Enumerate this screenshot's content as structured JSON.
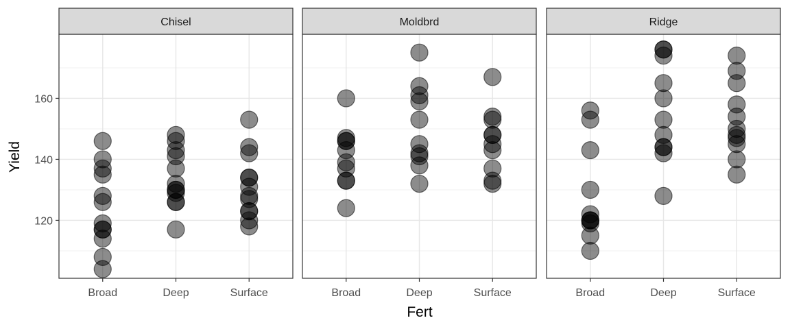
{
  "chart_data": {
    "type": "scatter",
    "xlabel": "Fert",
    "ylabel": "Yield",
    "categories": [
      "Broad",
      "Deep",
      "Surface"
    ],
    "ylim": [
      101,
      181
    ],
    "yticks": [
      120,
      140,
      160
    ],
    "grid": true,
    "point_color": "#000000",
    "point_alpha": 0.45,
    "strip_fill": "#d9d9d9",
    "panels": [
      {
        "title": "Chisel",
        "points": {
          "Broad": [
            146,
            140,
            137,
            135,
            128,
            126,
            119,
            117,
            117,
            114,
            108,
            104
          ],
          "Deep": [
            148,
            146,
            143,
            141,
            137,
            132,
            130,
            130,
            129,
            126,
            126,
            117
          ],
          "Surface": [
            153,
            144,
            142,
            134,
            134,
            131,
            128,
            127,
            123,
            123,
            120,
            118
          ]
        }
      },
      {
        "title": "Moldbrd",
        "points": {
          "Broad": [
            160,
            147,
            146,
            146,
            143,
            139,
            137,
            133,
            133,
            124
          ],
          "Deep": [
            175,
            164,
            161,
            159,
            153,
            145,
            142,
            141,
            138,
            132
          ],
          "Surface": [
            167,
            154,
            153,
            148,
            148,
            145,
            143,
            137,
            133,
            132
          ]
        }
      },
      {
        "title": "Ridge",
        "points": {
          "Broad": [
            156,
            153,
            143,
            130,
            122,
            120,
            120,
            120,
            119,
            115,
            110
          ],
          "Deep": [
            176,
            176,
            174,
            165,
            160,
            153,
            148,
            144,
            144,
            142,
            128
          ],
          "Surface": [
            174,
            169,
            165,
            158,
            154,
            150,
            148,
            147,
            145,
            140,
            135
          ]
        }
      }
    ]
  }
}
